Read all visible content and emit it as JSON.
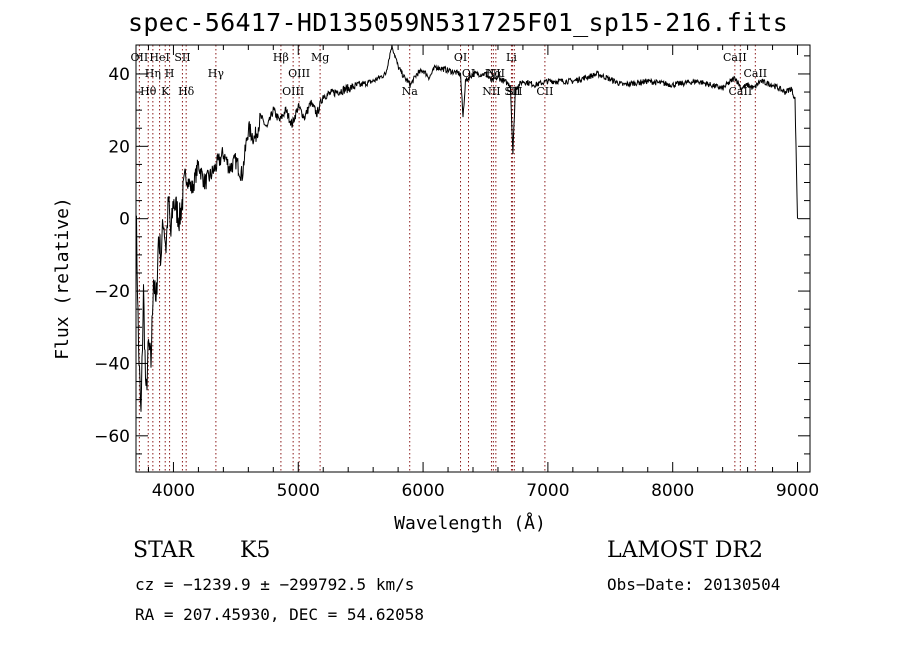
{
  "header": {
    "title": "spec-56417-HD135059N531725F01_sp15-216.fits"
  },
  "footer": {
    "object_class": "STAR",
    "subclass": "K5",
    "survey": "LAMOST DR2",
    "cz_line": "cz = −1239.9 ± −299792.5 km/s",
    "obs_date": "Obs−Date: 20130504",
    "radec_line": "RA = 207.45930, DEC =  54.62058"
  },
  "chart_data": {
    "type": "line",
    "xlabel": "Wavelength (Å)",
    "ylabel": "Flux (relative)",
    "xlim": [
      3700,
      9100
    ],
    "ylim": [
      -70,
      48
    ],
    "xticks": [
      4000,
      5000,
      6000,
      7000,
      8000,
      9000
    ],
    "yticks": [
      -60,
      -40,
      -20,
      0,
      20,
      40
    ],
    "xtick_labels": [
      "4000",
      "5000",
      "6000",
      "7000",
      "8000",
      "9000"
    ],
    "ytick_labels": [
      "−60",
      "−40",
      "−20",
      "0",
      "20",
      "40"
    ],
    "x_minor_step": 200,
    "y_minor_step": 5,
    "colors": {
      "spectrum": "#000000",
      "lines": "#8b1a1a",
      "axes": "#000000"
    },
    "series": [
      {
        "x": [
          3700,
          3720,
          3740,
          3760,
          3780,
          3800,
          3820,
          3840,
          3860,
          3880,
          3900,
          3920,
          3940,
          3960,
          3980,
          4000,
          4050,
          4100,
          4150,
          4200,
          4250,
          4300,
          4350,
          4400,
          4450,
          4500,
          4550,
          4600,
          4650,
          4700,
          4750,
          4800,
          4850,
          4900,
          4950,
          5000,
          5050,
          5100,
          5150,
          5200,
          5300,
          5400,
          5500,
          5600,
          5700,
          5750,
          5800,
          5850,
          5900,
          5950,
          6000,
          6050,
          6100,
          6200,
          6300,
          6320,
          6340,
          6400,
          6500,
          6550,
          6600,
          6650,
          6700,
          6720,
          6740,
          6800,
          6900,
          7000,
          7200,
          7400,
          7600,
          7800,
          8000,
          8200,
          8400,
          8500,
          8550,
          8600,
          8650,
          8700,
          8800,
          8900,
          8950,
          8980,
          9000
        ],
        "y": [
          5,
          -35,
          -55,
          -20,
          -50,
          -35,
          -40,
          -15,
          -25,
          -5,
          -10,
          0,
          -8,
          5,
          -5,
          5,
          0,
          12,
          8,
          15,
          10,
          12,
          15,
          18,
          14,
          16,
          12,
          25,
          22,
          28,
          25,
          30,
          27,
          30,
          26,
          31,
          28,
          32,
          29,
          34,
          35,
          36,
          37,
          38,
          40,
          48,
          42,
          39,
          37,
          40,
          41,
          39,
          42,
          41,
          40,
          28,
          38,
          40,
          40,
          38,
          39,
          38,
          37,
          18,
          36,
          38,
          37,
          38,
          38,
          40,
          37,
          38,
          37,
          38,
          36,
          39,
          36,
          37,
          36,
          38,
          37,
          35,
          36,
          33,
          0
        ]
      }
    ],
    "lines": [
      {
        "name": "OII",
        "wl": 3727,
        "pos": "top"
      },
      {
        "name": "Hθ",
        "wl": 3798,
        "pos": "bottom"
      },
      {
        "name": "Hη",
        "wl": 3835,
        "pos": "mid"
      },
      {
        "name": "HeI",
        "wl": 3889,
        "pos": "top"
      },
      {
        "name": "K",
        "wl": 3934,
        "pos": "bottom"
      },
      {
        "name": "H",
        "wl": 3969,
        "pos": "mid"
      },
      {
        "name": "SII",
        "wl": 4072,
        "pos": "top"
      },
      {
        "name": "Hδ",
        "wl": 4102,
        "pos": "bottom"
      },
      {
        "name": "Hγ",
        "wl": 4340,
        "pos": "mid"
      },
      {
        "name": "Hβ",
        "wl": 4861,
        "pos": "top"
      },
      {
        "name": "OIII",
        "wl": 4959,
        "pos": "bottom"
      },
      {
        "name": "OIII",
        "wl": 5007,
        "pos": "mid"
      },
      {
        "name": "Mg",
        "wl": 5175,
        "pos": "top"
      },
      {
        "name": "Na",
        "wl": 5893,
        "pos": "bottom"
      },
      {
        "name": "OI",
        "wl": 6300,
        "pos": "top"
      },
      {
        "name": "OI",
        "wl": 6364,
        "pos": "mid"
      },
      {
        "name": "NII",
        "wl": 6548,
        "pos": "bottom"
      },
      {
        "name": "Hα",
        "wl": 6563,
        "pos": "mid"
      },
      {
        "name": "NII",
        "wl": 6583,
        "pos": "mid"
      },
      {
        "name": "Li",
        "wl": 6708,
        "pos": "top"
      },
      {
        "name": "SII",
        "wl": 6716,
        "pos": "bottom"
      },
      {
        "name": "SII",
        "wl": 6731,
        "pos": "bottom"
      },
      {
        "name": "CII",
        "wl": 6976,
        "pos": "bottom"
      },
      {
        "name": "CaII",
        "wl": 8498,
        "pos": "top"
      },
      {
        "name": "CaII",
        "wl": 8542,
        "pos": "bottom"
      },
      {
        "name": "CaII",
        "wl": 8662,
        "pos": "mid"
      }
    ]
  }
}
